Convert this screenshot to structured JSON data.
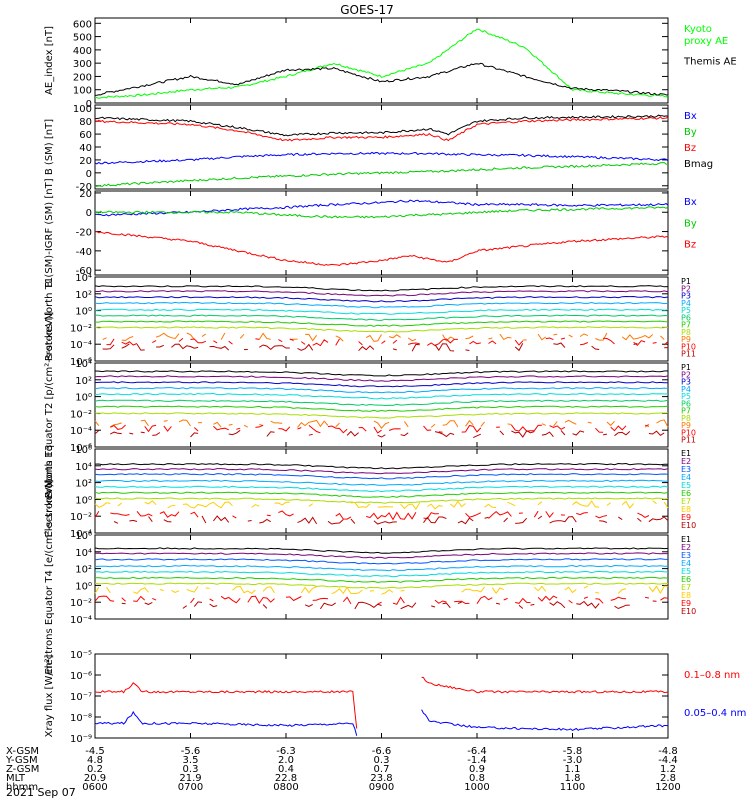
{
  "title": "GOES-17",
  "date_label": "2021 Sep 07",
  "colors": {
    "axis": "#000000",
    "bx": "#0000ff",
    "by": "#00cc00",
    "bz": "#ff0000",
    "bmag": "#000000",
    "kyoto": "#00ff00",
    "themis": "#000000",
    "xray_long": "#ff0000",
    "xray_short": "#0000ff",
    "channel_ramp": [
      "#000000",
      "#7a007a",
      "#0000cc",
      "#0055ff",
      "#00aaff",
      "#00dddd",
      "#00cc66",
      "#22cc00",
      "#aadd00",
      "#ffcc00",
      "#ff7700",
      "#ff0000",
      "#bb0000"
    ]
  },
  "chart_data": [
    {
      "type": "line",
      "panel": "ae-index",
      "ylabel": "AE_index [nT]",
      "ylim": [
        0,
        640
      ],
      "yticks": [
        0,
        100,
        200,
        300,
        400,
        500,
        600
      ],
      "x_hours": [
        6.0,
        6.5,
        7.0,
        7.5,
        8.0,
        8.5,
        9.0,
        9.5,
        10.0,
        10.5,
        11.0,
        11.5,
        12.0
      ],
      "series": [
        {
          "name": "Kyoto proxy AE",
          "color_key": "kyoto",
          "legend": [
            "Kyoto",
            "proxy AE"
          ],
          "values": [
            40,
            60,
            100,
            120,
            200,
            300,
            200,
            300,
            560,
            420,
            100,
            70,
            50
          ]
        },
        {
          "name": "Themis AE",
          "color_key": "themis",
          "legend": [
            "Themis AE"
          ],
          "values": [
            60,
            130,
            200,
            140,
            250,
            260,
            160,
            200,
            300,
            200,
            110,
            90,
            60
          ]
        }
      ]
    },
    {
      "type": "line",
      "panel": "b-sm",
      "ylabel": "B (SM) [nT]",
      "ylim": [
        -25,
        105
      ],
      "yticks": [
        -20,
        0,
        20,
        40,
        60,
        80,
        100
      ],
      "x_hours": [
        6.0,
        7.0,
        7.5,
        8.0,
        8.5,
        9.0,
        9.5,
        9.7,
        10.0,
        10.5,
        11.0,
        12.0
      ],
      "series": [
        {
          "name": "Bx",
          "color_key": "bx",
          "legend": [
            "Bx"
          ],
          "values": [
            15,
            20,
            25,
            28,
            30,
            30,
            30,
            29,
            28,
            27,
            25,
            20
          ]
        },
        {
          "name": "By",
          "color_key": "by",
          "legend": [
            "By"
          ],
          "values": [
            -20,
            -12,
            -8,
            -5,
            -2,
            0,
            2,
            3,
            5,
            8,
            10,
            15
          ]
        },
        {
          "name": "Bz",
          "color_key": "bz",
          "legend": [
            "Bz"
          ],
          "values": [
            80,
            75,
            65,
            50,
            55,
            55,
            60,
            50,
            75,
            80,
            82,
            85
          ]
        },
        {
          "name": "Bmag",
          "color_key": "bmag",
          "legend": [
            "Bmag"
          ],
          "values": [
            85,
            80,
            70,
            58,
            62,
            62,
            68,
            60,
            80,
            85,
            86,
            88
          ]
        }
      ]
    },
    {
      "type": "line",
      "panel": "b-minus-igrf",
      "ylabel": "B (SM)-IGRF (SM) [nT]",
      "ylim": [
        -65,
        22
      ],
      "yticks": [
        -60,
        -40,
        -20,
        0,
        20
      ],
      "x_hours": [
        6.0,
        7.0,
        7.5,
        8.0,
        8.5,
        9.0,
        9.3,
        9.7,
        10.0,
        10.5,
        11.0,
        12.0
      ],
      "series": [
        {
          "name": "Bx",
          "color_key": "bx",
          "legend": [
            "Bx"
          ],
          "values": [
            -3,
            0,
            3,
            5,
            8,
            10,
            12,
            10,
            8,
            8,
            7,
            8
          ]
        },
        {
          "name": "By",
          "color_key": "by",
          "legend": [
            "By"
          ],
          "values": [
            0,
            0,
            0,
            -3,
            -5,
            -5,
            -3,
            -2,
            0,
            2,
            3,
            5
          ]
        },
        {
          "name": "Bz",
          "color_key": "bz",
          "legend": [
            "Bz"
          ],
          "values": [
            -20,
            -30,
            -40,
            -50,
            -55,
            -50,
            -45,
            -52,
            -40,
            -35,
            -30,
            -25
          ]
        }
      ]
    },
    {
      "type": "line",
      "panel": "protons-north",
      "ylabel": "Protons North T1",
      "ylim_log": [
        -6,
        4
      ],
      "ytick_labels": [
        "10⁴",
        "10²",
        "10⁰",
        "10⁻²",
        "10⁻⁴",
        "10⁻⁶"
      ],
      "ytick_exps": [
        4,
        2,
        0,
        -2,
        -4,
        -6
      ],
      "legend": [
        "P1",
        "P2",
        "P3",
        "P4",
        "P5",
        "P6",
        "P7",
        "P8",
        "P9",
        "P10",
        "P11"
      ],
      "channel_log_levels": [
        2.9,
        2.3,
        1.6,
        0.9,
        0.1,
        -0.6,
        -1.3,
        -2.0,
        -3.1,
        -3.7,
        -4.3
      ]
    },
    {
      "type": "line",
      "panel": "protons-equator",
      "ylabel": "Protons Equator T2 [p/(cm²-s-sr-keV)]",
      "ylim_log": [
        -6,
        4
      ],
      "ytick_labels": [
        "10⁴",
        "10²",
        "10⁰",
        "10⁻²",
        "10⁻⁴",
        "10⁻⁶"
      ],
      "ytick_exps": [
        4,
        2,
        0,
        -2,
        -4,
        -6
      ],
      "legend": [
        "P1",
        "P2",
        "P3",
        "P4",
        "P5",
        "P6",
        "P7",
        "P8",
        "P9",
        "P10",
        "P11"
      ],
      "channel_log_levels": [
        3.0,
        2.4,
        1.7,
        1.0,
        0.3,
        -0.5,
        -1.2,
        -2.0,
        -3.2,
        -3.8,
        -4.4
      ]
    },
    {
      "type": "line",
      "panel": "electrons-north",
      "ylabel": "Electrons North T3",
      "ylim_log": [
        -4,
        6
      ],
      "ytick_labels": [
        "10⁶",
        "10⁴",
        "10²",
        "10⁰",
        "10⁻²",
        "10⁻⁴"
      ],
      "ytick_exps": [
        6,
        4,
        2,
        0,
        -2,
        -4
      ],
      "legend": [
        "E1",
        "E2",
        "E3",
        "E4",
        "E5",
        "E6",
        "E7",
        "E8",
        "E9",
        "E10"
      ],
      "channel_log_levels": [
        4.2,
        3.6,
        3.0,
        2.2,
        1.5,
        0.8,
        0.1,
        -0.6,
        -1.8,
        -2.4
      ]
    },
    {
      "type": "line",
      "panel": "electrons-equator",
      "ylabel": "Electrons Equator T4 [e/(cm²-s-sr-keV)]",
      "ylim_log": [
        -4,
        6
      ],
      "ytick_labels": [
        "10⁶",
        "10⁴",
        "10²",
        "10⁰",
        "10⁻²",
        "10⁻⁴"
      ],
      "ytick_exps": [
        6,
        4,
        2,
        0,
        -2,
        -4
      ],
      "legend": [
        "E1",
        "E2",
        "E3",
        "E4",
        "E5",
        "E6",
        "E7",
        "E8",
        "E9",
        "E10"
      ],
      "channel_log_levels": [
        4.4,
        3.8,
        3.1,
        2.3,
        1.6,
        0.9,
        0.2,
        -0.5,
        -1.7,
        -2.3
      ]
    },
    {
      "type": "line",
      "panel": "xray",
      "ylabel": "Xray flux [W/m²]",
      "ylim_log": [
        -9,
        -5
      ],
      "ytick_labels": [
        "10⁻⁵",
        "10⁻⁶",
        "10⁻⁷",
        "10⁻⁸",
        "10⁻⁹"
      ],
      "ytick_exps": [
        -5,
        -6,
        -7,
        -8,
        -9
      ],
      "x_hours": [
        6.0,
        6.3,
        6.4,
        6.5,
        7.0,
        8.0,
        8.7,
        8.75,
        9.35,
        9.4,
        9.5,
        10.0,
        11.0,
        12.0
      ],
      "series": [
        {
          "name": "0.1-0.8 nm",
          "color_key": "xray_long",
          "legend": [
            "0.1–0.8 nm"
          ],
          "values_log": [
            -6.8,
            -6.8,
            -6.4,
            -6.8,
            -6.8,
            -6.8,
            -6.8,
            -9.0,
            null,
            -6.0,
            -6.4,
            -6.8,
            -6.8,
            -6.8
          ]
        },
        {
          "name": "0.05-0.4 nm",
          "color_key": "xray_short",
          "legend": [
            "0.05–0.4 nm"
          ],
          "values_log": [
            -8.3,
            -8.3,
            -7.8,
            -8.3,
            -8.3,
            -8.4,
            -8.3,
            -9.0,
            null,
            -7.5,
            -8.2,
            -8.5,
            -8.6,
            -8.4
          ]
        }
      ]
    }
  ],
  "x_axis": {
    "row_labels": [
      "X-GSM",
      "Y-GSM",
      "Z-GSM",
      "MLT",
      "hhmm"
    ],
    "columns": [
      [
        "-4.5",
        "4.8",
        "0.2",
        "20.9",
        "0600"
      ],
      [
        "-5.6",
        "3.5",
        "0.3",
        "21.9",
        "0700"
      ],
      [
        "-6.3",
        "2.0",
        "0.4",
        "22.8",
        "0800"
      ],
      [
        "-6.6",
        "0.3",
        "0.7",
        "23.8",
        "0900"
      ],
      [
        "-6.4",
        "-1.4",
        "0.9",
        "0.8",
        "1000"
      ],
      [
        "-5.8",
        "-3.0",
        "1.1",
        "1.8",
        "1100"
      ],
      [
        "-4.8",
        "-4.4",
        "1.2",
        "2.8",
        "1200"
      ]
    ]
  }
}
